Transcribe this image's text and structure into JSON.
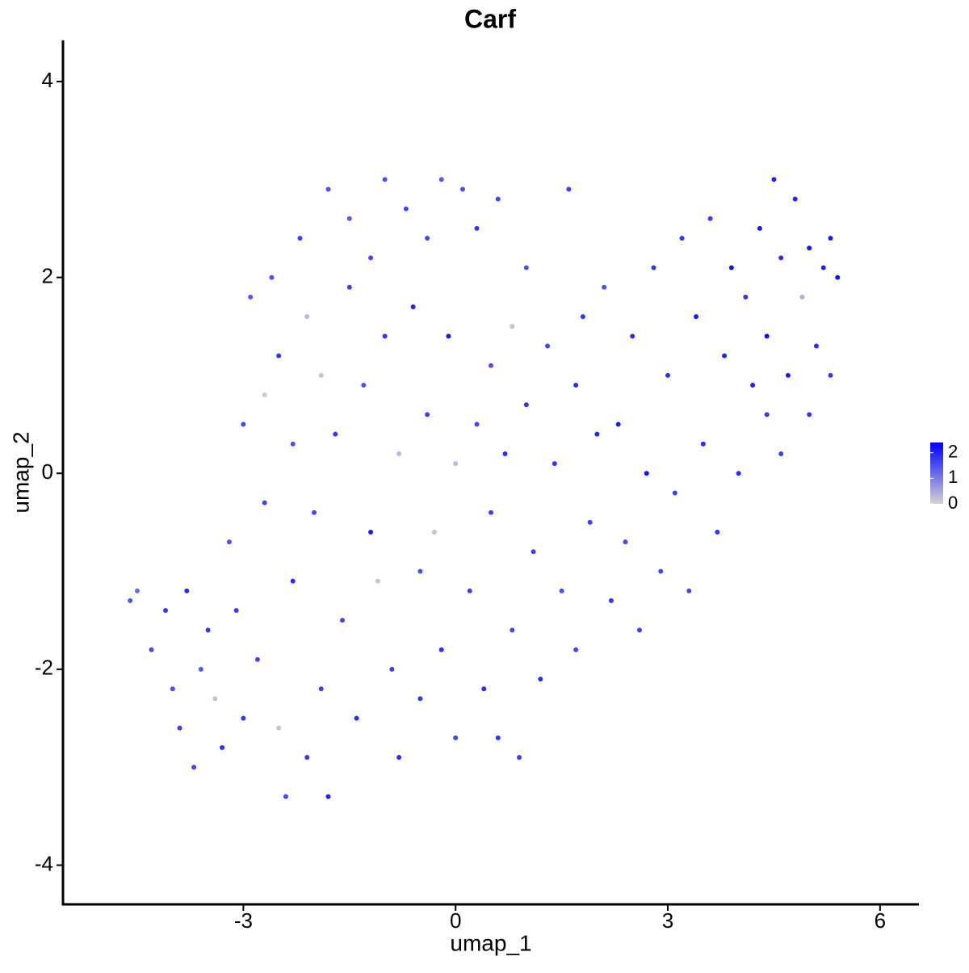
{
  "chart_data": {
    "type": "scatter",
    "title": "Carf",
    "xlabel": "umap_1",
    "ylabel": "umap_2",
    "xlim": [
      -5.55,
      6.55
    ],
    "ylim": [
      -4.4,
      4.42
    ],
    "xticks": [
      -3,
      0,
      3,
      6
    ],
    "yticks": [
      -4,
      -2,
      0,
      2,
      4
    ],
    "color_low": "#d3d3d3",
    "color_high": "#0000ff",
    "color_lim": [
      0,
      2.4
    ],
    "color_ticks": [
      0,
      1,
      2
    ],
    "x": [
      -4.6,
      -4.5,
      -4.3,
      -4.1,
      -4.0,
      -3.9,
      -3.8,
      -3.7,
      -3.6,
      -3.5,
      -3.4,
      -3.3,
      -3.2,
      -3.1,
      -3.0,
      -3.0,
      -2.9,
      -2.8,
      -2.7,
      -2.7,
      -2.6,
      -2.5,
      -2.5,
      -2.4,
      -2.3,
      -2.3,
      -2.2,
      -2.1,
      -2.1,
      -2.0,
      -1.9,
      -1.9,
      -1.8,
      -1.8,
      -1.7,
      -1.6,
      -1.5,
      -1.5,
      -1.4,
      -1.3,
      -1.2,
      -1.2,
      -1.1,
      -1.0,
      -1.0,
      -0.9,
      -0.8,
      -0.8,
      -0.7,
      -0.6,
      -0.5,
      -0.5,
      -0.4,
      -0.4,
      -0.3,
      -0.2,
      -0.2,
      -0.1,
      0.0,
      0.0,
      0.1,
      0.2,
      0.3,
      0.3,
      0.4,
      0.5,
      0.5,
      0.6,
      0.6,
      0.7,
      0.8,
      0.8,
      0.9,
      1.0,
      1.0,
      1.1,
      1.2,
      1.3,
      1.4,
      1.5,
      1.6,
      1.7,
      1.7,
      1.8,
      1.9,
      2.0,
      2.1,
      2.2,
      2.3,
      2.4,
      2.5,
      2.6,
      2.7,
      2.8,
      2.9,
      3.0,
      3.1,
      3.2,
      3.3,
      3.4,
      3.5,
      3.6,
      3.7,
      3.8,
      3.9,
      4.0,
      4.1,
      4.2,
      4.3,
      4.4,
      4.4,
      4.5,
      4.6,
      4.6,
      4.7,
      4.8,
      4.9,
      5.0,
      5.0,
      5.1,
      5.2,
      5.3,
      5.3,
      5.4
    ],
    "y": [
      -1.3,
      -1.2,
      -1.8,
      -1.4,
      -2.2,
      -2.6,
      -1.2,
      -3.0,
      -2.0,
      -1.6,
      -2.3,
      -2.8,
      -0.7,
      -1.4,
      0.5,
      -2.5,
      1.8,
      -1.9,
      0.8,
      -0.3,
      2.0,
      1.2,
      -2.6,
      -3.3,
      -1.1,
      0.3,
      2.4,
      1.6,
      -2.9,
      -0.4,
      1.0,
      -2.2,
      2.9,
      -3.3,
      0.4,
      -1.5,
      2.6,
      1.9,
      -2.5,
      0.9,
      -0.6,
      2.2,
      -1.1,
      3.0,
      1.4,
      -2.0,
      0.2,
      -2.9,
      2.7,
      1.7,
      -1.0,
      -2.3,
      2.4,
      0.6,
      -0.6,
      3.0,
      -1.8,
      1.4,
      0.1,
      -2.7,
      2.9,
      -1.2,
      2.5,
      0.5,
      -2.2,
      1.1,
      -0.4,
      2.8,
      -2.7,
      0.2,
      1.5,
      -1.6,
      -2.9,
      0.7,
      2.1,
      -0.8,
      -2.1,
      1.3,
      0.1,
      -1.2,
      2.9,
      0.9,
      -1.8,
      1.6,
      -0.5,
      0.4,
      1.9,
      -1.3,
      0.5,
      -0.7,
      1.4,
      -1.6,
      0.0,
      2.1,
      -1.0,
      1.0,
      -0.2,
      2.4,
      -1.2,
      1.6,
      0.3,
      2.6,
      -0.6,
      1.2,
      2.1,
      0.0,
      1.8,
      0.9,
      2.5,
      0.6,
      1.4,
      3.0,
      2.2,
      0.2,
      1.0,
      2.8,
      1.8,
      0.6,
      2.3,
      1.3,
      2.1,
      2.4,
      1.0,
      2.0
    ],
    "values": [
      1.5,
      1.2,
      1.6,
      1.8,
      1.5,
      1.7,
      1.9,
      1.6,
      1.4,
      1.8,
      0.2,
      1.9,
      1.5,
      1.7,
      1.6,
      1.8,
      1.4,
      1.6,
      0.1,
      1.7,
      1.5,
      1.8,
      0.2,
      1.6,
      1.9,
      1.5,
      1.7,
      0.3,
      1.8,
      1.6,
      0.2,
      1.7,
      1.5,
      2.0,
      1.8,
      1.6,
      1.4,
      1.7,
      1.9,
      1.5,
      2.1,
      1.6,
      0.2,
      1.5,
      1.8,
      1.7,
      0.3,
      1.9,
      1.6,
      2.0,
      1.5,
      1.8,
      1.6,
      1.7,
      0.2,
      1.4,
      1.9,
      2.1,
      0.3,
      1.6,
      1.5,
      1.7,
      1.8,
      1.6,
      1.9,
      1.5,
      1.7,
      1.6,
      1.8,
      1.9,
      0.2,
      1.6,
      1.7,
      1.8,
      1.5,
      1.7,
      1.9,
      1.6,
      1.8,
      1.5,
      1.7,
      1.9,
      1.6,
      1.8,
      1.7,
      2.0,
      1.5,
      1.8,
      2.1,
      1.6,
      1.9,
      1.7,
      2.2,
      1.8,
      1.6,
      1.9,
      1.7,
      1.8,
      1.6,
      2.1,
      1.9,
      1.7,
      1.8,
      2.0,
      2.2,
      1.9,
      1.8,
      2.0,
      2.1,
      1.8,
      2.3,
      2.0,
      1.9,
      1.7,
      2.1,
      2.0,
      0.4,
      1.8,
      2.2,
      1.9,
      2.0,
      2.1,
      1.8,
      2.2
    ]
  }
}
